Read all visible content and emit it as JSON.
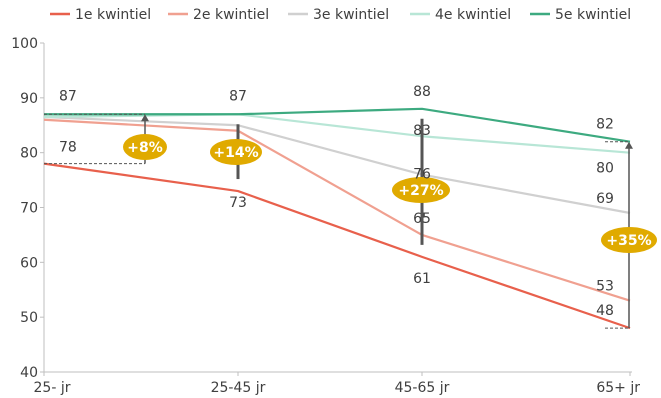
{
  "chart_data": {
    "type": "line",
    "categories": [
      "25- jr",
      "25-45 jr",
      "45-65 jr",
      "65+ jr"
    ],
    "ylim": [
      40,
      100
    ],
    "yticks": [
      40,
      50,
      60,
      70,
      80,
      90,
      100
    ],
    "grid": false,
    "legend_position": "top",
    "series": [
      {
        "name": "1e kwintiel",
        "color": "#E8604C",
        "values": [
          78,
          73,
          61,
          48
        ]
      },
      {
        "name": "2e kwintiel",
        "color": "#F0A090",
        "values": [
          86,
          84,
          65,
          53
        ]
      },
      {
        "name": "3e kwintiel",
        "color": "#D0D0D0",
        "values": [
          86.5,
          85,
          76,
          69
        ]
      },
      {
        "name": "4e kwintiel",
        "color": "#B8E6D6",
        "values": [
          86.5,
          87,
          83,
          80
        ]
      },
      {
        "name": "5e kwintiel",
        "color": "#3DAA80",
        "values": [
          87,
          87,
          88,
          82
        ]
      }
    ],
    "data_labels": [
      {
        "text": "87",
        "x": 0,
        "y": 87
      },
      {
        "text": "78",
        "x": 0,
        "y": 78
      },
      {
        "text": "87",
        "x": 1,
        "y": 87
      },
      {
        "text": "73",
        "x": 1,
        "y": 73
      },
      {
        "text": "88",
        "x": 2,
        "y": 88
      },
      {
        "text": "83",
        "x": 2,
        "y": 83
      },
      {
        "text": "76",
        "x": 2,
        "y": 76
      },
      {
        "text": "65",
        "x": 2,
        "y": 65
      },
      {
        "text": "61",
        "x": 2,
        "y": 61
      },
      {
        "text": "82",
        "x": 3,
        "y": 82
      },
      {
        "text": "80",
        "x": 3,
        "y": 80
      },
      {
        "text": "69",
        "x": 3,
        "y": 69
      },
      {
        "text": "53",
        "x": 3,
        "y": 53
      },
      {
        "text": "48",
        "x": 3,
        "y": 48
      }
    ],
    "gap_annotations": [
      {
        "label": "+8%",
        "x": 0,
        "low": 78,
        "high": 87
      },
      {
        "label": "+14%",
        "x": 1,
        "low": 73,
        "high": 87
      },
      {
        "label": "+27%",
        "x": 2,
        "low": 61,
        "high": 88
      },
      {
        "label": "+35%",
        "x": 3,
        "low": 48,
        "high": 82
      }
    ],
    "annotation_color": "#E0AA00"
  }
}
